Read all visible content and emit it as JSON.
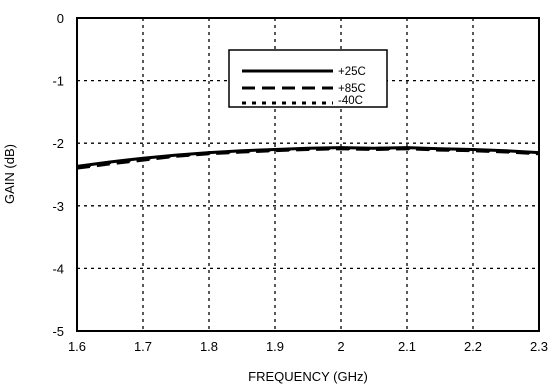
{
  "chart_data": {
    "type": "line",
    "title": "",
    "xlabel": "FREQUENCY (GHz)",
    "ylabel": "GAIN (dB)",
    "xlim": [
      1.6,
      2.3
    ],
    "ylim": [
      -5,
      0
    ],
    "xticks": [
      1.6,
      1.7,
      1.8,
      1.9,
      2.0,
      2.1,
      2.2,
      2.3
    ],
    "xtick_labels": [
      "1.6",
      "1.7",
      "1.8",
      "1.9",
      "2",
      "2.1",
      "2.2",
      "2.3"
    ],
    "yticks": [
      0,
      -1,
      -2,
      -3,
      -4,
      -5
    ],
    "ytick_labels": [
      "0",
      "-1",
      "-2",
      "-3",
      "-4",
      "-5"
    ],
    "grid": true,
    "legend_position": "top-right",
    "series": [
      {
        "name": "+25C",
        "style": "solid",
        "x": [
          1.6,
          1.65,
          1.7,
          1.75,
          1.8,
          1.85,
          1.9,
          1.95,
          2.0,
          2.05,
          2.1,
          2.15,
          2.2,
          2.25,
          2.3
        ],
        "y": [
          -2.37,
          -2.3,
          -2.24,
          -2.19,
          -2.15,
          -2.12,
          -2.1,
          -2.08,
          -2.07,
          -2.08,
          -2.07,
          -2.09,
          -2.1,
          -2.12,
          -2.15
        ]
      },
      {
        "name": "+85C",
        "style": "dashed",
        "x": [
          1.6,
          1.65,
          1.7,
          1.75,
          1.8,
          1.85,
          1.9,
          1.95,
          2.0,
          2.05,
          2.1,
          2.15,
          2.2,
          2.25,
          2.3
        ],
        "y": [
          -2.4,
          -2.33,
          -2.27,
          -2.21,
          -2.17,
          -2.14,
          -2.12,
          -2.1,
          -2.09,
          -2.1,
          -2.09,
          -2.11,
          -2.12,
          -2.14,
          -2.17
        ]
      },
      {
        "name": "-40C",
        "style": "dotted",
        "x": [
          1.6,
          1.65,
          1.7,
          1.75,
          1.8,
          1.85,
          1.9,
          1.95,
          2.0,
          2.05,
          2.1,
          2.15,
          2.2,
          2.25,
          2.3
        ],
        "y": [
          -2.38,
          -2.31,
          -2.25,
          -2.2,
          -2.16,
          -2.13,
          -2.11,
          -2.09,
          -2.08,
          -2.09,
          -2.08,
          -2.1,
          -2.11,
          -2.13,
          -2.16
        ]
      }
    ]
  }
}
